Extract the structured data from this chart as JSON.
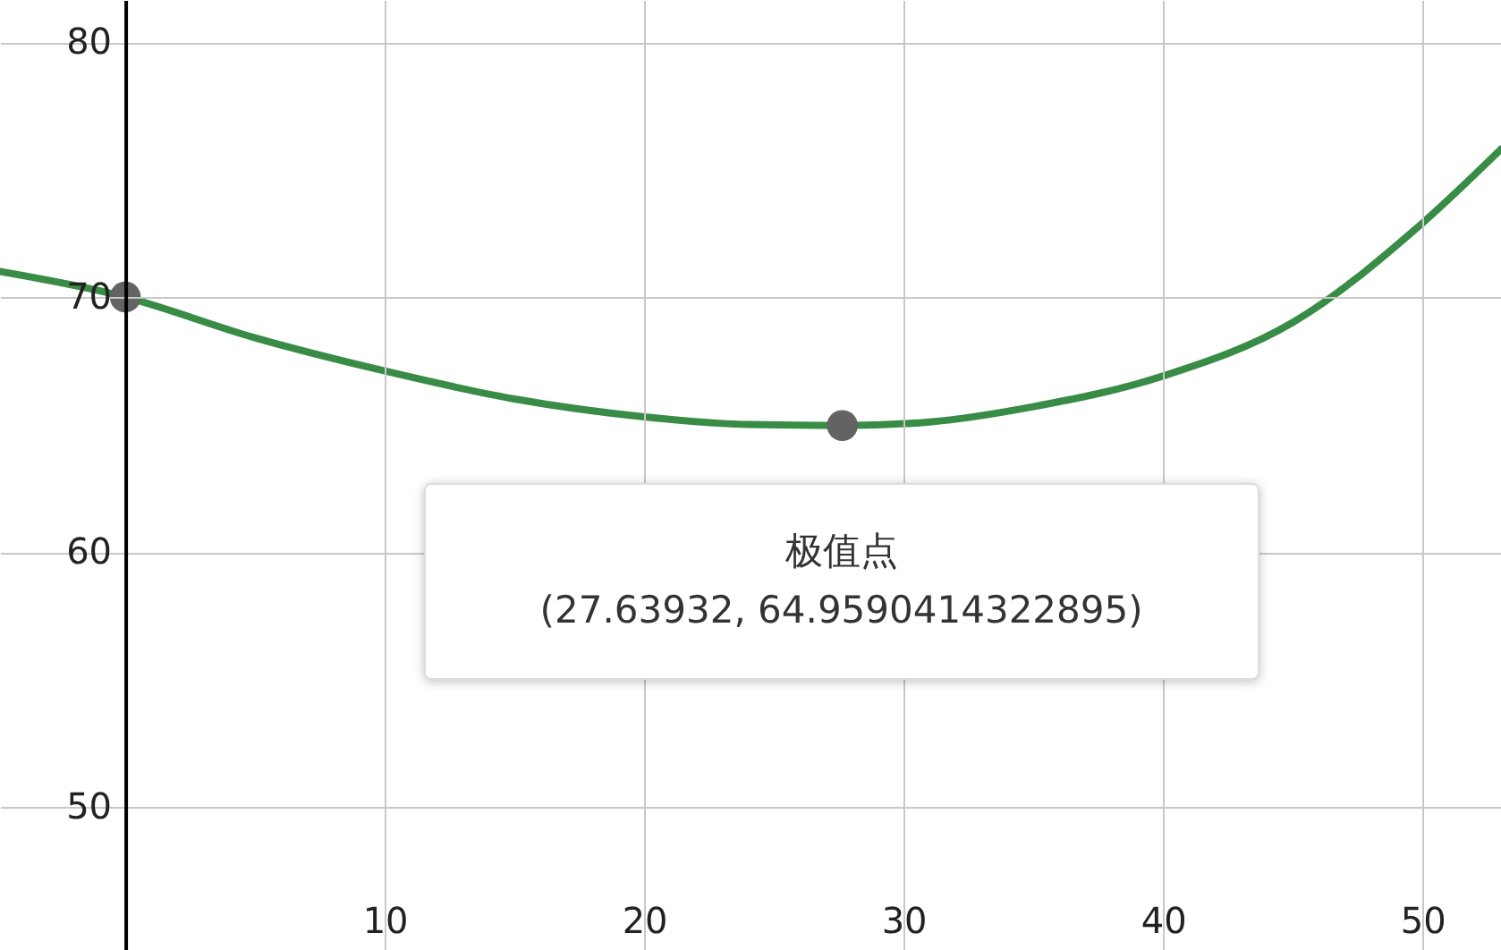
{
  "chart_data": {
    "type": "line",
    "xlim": [
      -4.83,
      53.03
    ],
    "ylim": [
      44.39,
      81.65
    ],
    "xticks": [
      10,
      20,
      30,
      40,
      50
    ],
    "yticks": [
      50,
      60,
      70,
      80
    ],
    "grid": true,
    "series": [
      {
        "color": "#388c46",
        "x": [
          -4.83,
          0,
          5,
          10,
          15,
          20,
          24,
          27.63932,
          31,
          35,
          40,
          45,
          50,
          53.03
        ],
        "values": [
          71.0,
          70,
          68.4,
          67.1,
          66.0,
          65.3,
          65.0,
          64.96,
          65.1,
          65.7,
          66.9,
          69.0,
          72.9,
          75.8
        ]
      },
      {
        "type": "scatter",
        "color": "#636363",
        "marker": "circle",
        "x": [
          0,
          27.63932
        ],
        "values": [
          70,
          64.9590414322895
        ]
      }
    ],
    "annotations": [
      {
        "text": "极值点\n(27.63932, 64.9590414322895)",
        "x": 27.63932,
        "y": 64.9590414322895
      }
    ]
  }
}
